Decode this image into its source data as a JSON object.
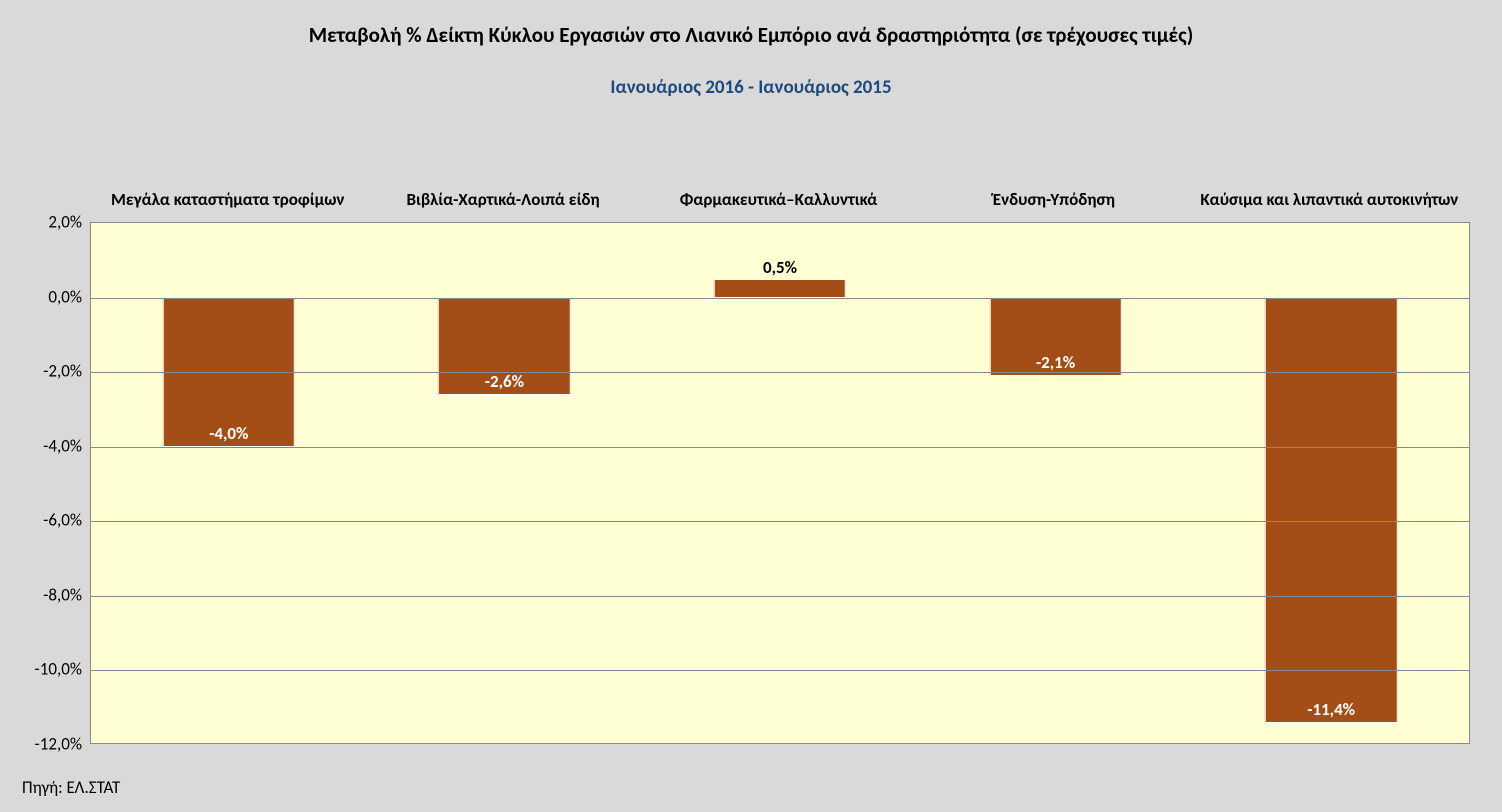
{
  "chart": {
    "type": "bar",
    "title": "Μεταβολή % Δείκτη Κύκλου Εργασιών στο Λιανικό Εμπόριο ανά δραστηριότητα (σε τρέχουσες τιμές)",
    "subtitle": "Ιανουάριος 2016 - Ιανουάριος 2015",
    "subtitle_color": "#1f497d",
    "title_fontsize": 21,
    "subtitle_fontsize": 19,
    "categories": [
      "Μεγάλα καταστήματα τροφίμων",
      "Βιβλία-Χαρτικά-Λοιπά είδη",
      "Φαρμακευτικά–Καλλυντικά",
      "Ένδυση-Υπόδηση",
      "Καύσιμα και λιπαντικά αυτοκινήτων"
    ],
    "values": [
      -4.0,
      -2.6,
      0.5,
      -2.1,
      -11.4
    ],
    "value_labels": [
      "-4,0%",
      "-2,6%",
      "0,5%",
      "-2,1%",
      "-11,4%"
    ],
    "bar_color": "#a34d17",
    "bar_border": "#ffffff",
    "data_label_color": "#ffffff",
    "data_label_fontsize": 17,
    "background_color": "#d9d9d9",
    "plot_background_color": "#feffd3",
    "grid_color": "#888888",
    "ylim": [
      -12.0,
      2.0
    ],
    "ytick_step": 2.0,
    "ytick_labels": [
      "2,0%",
      "0,0%",
      "-2,0%",
      "-4,0%",
      "-6,0%",
      "-8,0%",
      "-10,0%",
      "-12,0%"
    ],
    "ytick_values": [
      2.0,
      0.0,
      -2.0,
      -4.0,
      -6.0,
      -8.0,
      -10.0,
      -12.0
    ],
    "bar_width_ratio": 0.48,
    "axis_label_fontsize": 17,
    "category_label_fontsize": 17,
    "source": "Πηγή: ΕΛ.ΣΤΑΤ"
  }
}
